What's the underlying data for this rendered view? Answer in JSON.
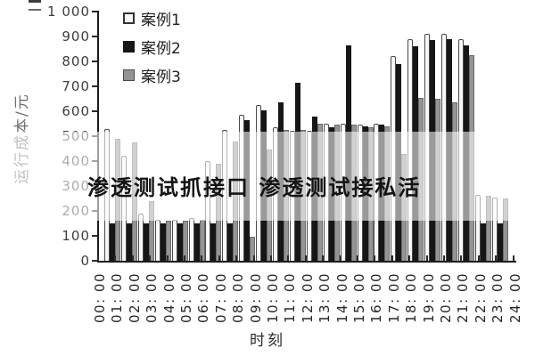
{
  "chart_data": {
    "type": "bar",
    "watermark": "渗透测试抓接口 渗透测试接私活",
    "ylabel": "运行成本/元",
    "xlabel": "时刻",
    "ylim": [
      0,
      1000
    ],
    "y_tick_labels": [
      "1 000",
      "900",
      "800",
      "700",
      "600",
      "500",
      "400",
      "300",
      "200",
      "100",
      "0"
    ],
    "x_tick_labels": [
      "00: 00",
      "01: 00",
      "02: 00",
      "03: 00",
      "04: 00",
      "05: 00",
      "06: 00",
      "07: 00",
      "08: 00",
      "09: 00",
      "10: 00",
      "11: 00",
      "12: 00",
      "13: 00",
      "14: 00",
      "15: 00",
      "16: 00",
      "17: 00",
      "18: 00",
      "19: 00",
      "20: 00",
      "21: 00",
      "22: 00",
      "23: 00",
      "24: 00"
    ],
    "x": [
      "00:00",
      "01:00",
      "02:00",
      "03:00",
      "04:00",
      "05:00",
      "06:00",
      "07:00",
      "08:00",
      "09:00",
      "10:00",
      "11:00",
      "12:00",
      "13:00",
      "14:00",
      "15:00",
      "16:00",
      "17:00",
      "18:00",
      "19:00",
      "20:00",
      "21:00",
      "22:00",
      "23:00"
    ],
    "series": [
      {
        "name": "案例1",
        "color": "#f7f7f7",
        "values": [
          530,
          420,
          190,
          165,
          165,
          170,
          400,
          525,
          585,
          625,
          535,
          520,
          520,
          550,
          550,
          545,
          550,
          820,
          890,
          910,
          910,
          890,
          265,
          255
        ]
      },
      {
        "name": "案例2",
        "color": "#161616",
        "values": [
          150,
          150,
          150,
          150,
          150,
          150,
          150,
          150,
          565,
          605,
          635,
          715,
          580,
          535,
          865,
          540,
          545,
          790,
          860,
          885,
          890,
          865,
          150,
          150
        ]
      },
      {
        "name": "案例3",
        "color": "#949494",
        "values": [
          490,
          475,
          240,
          160,
          160,
          165,
          390,
          480,
          95,
          445,
          525,
          525,
          550,
          545,
          545,
          535,
          540,
          430,
          655,
          650,
          635,
          825,
          260,
          250
        ]
      }
    ],
    "legend_position": "top-left-inside",
    "grid": false
  }
}
